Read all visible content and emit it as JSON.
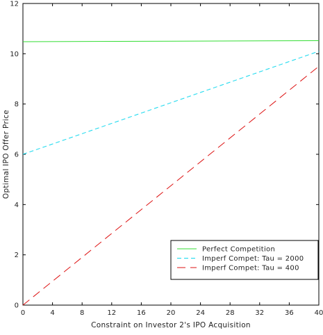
{
  "chart_data": {
    "type": "line",
    "title": "",
    "xlabel": "Constraint on Investor 2's IPO Acquisition",
    "ylabel": "Optimal IPO Offer Price",
    "xlim": [
      0,
      40
    ],
    "ylim": [
      0,
      12
    ],
    "xticks": [
      "0",
      "4",
      "8",
      "12",
      "16",
      "20",
      "24",
      "28",
      "32",
      "36",
      "40"
    ],
    "yticks": [
      "0",
      "2",
      "4",
      "6",
      "8",
      "10",
      "12"
    ],
    "grid": false,
    "legend_position": "bottom-right",
    "series": [
      {
        "name": "Perfect Competition",
        "color": "#33dd33",
        "dash": "solid",
        "x": [
          0,
          40
        ],
        "y": [
          10.48,
          10.52
        ]
      },
      {
        "name": "Imperf Compet: Tau = 2000",
        "color": "#11d8ee",
        "dash": "dashed",
        "x": [
          0,
          40
        ],
        "y": [
          6.0,
          10.1
        ]
      },
      {
        "name": "Imperf Compet: Tau = 400",
        "color": "#dd1111",
        "dash": "longdash",
        "x": [
          0,
          40
        ],
        "y": [
          0.0,
          9.5
        ]
      }
    ]
  }
}
